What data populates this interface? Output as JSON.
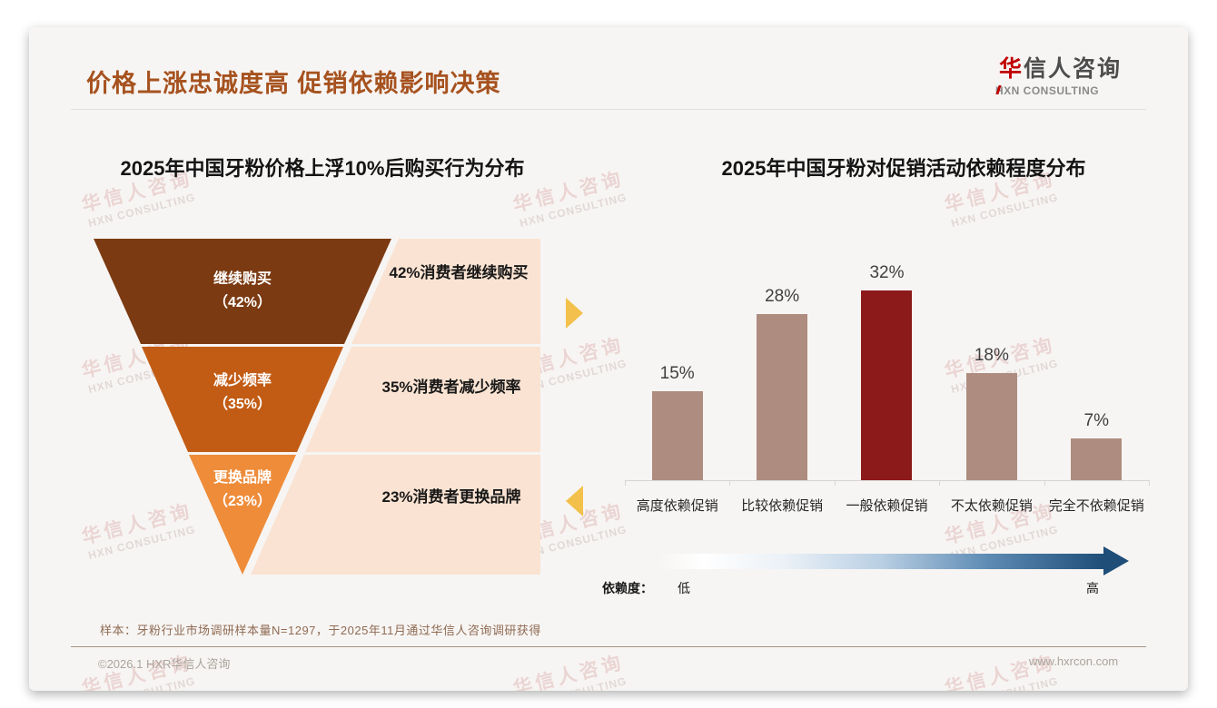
{
  "header": {
    "title": "价格上涨忠诚度高 促销依赖影响决策",
    "logo": {
      "name_first": "华",
      "name_rest": "信人咨询",
      "subtitle": "HXN CONSULTING"
    }
  },
  "watermark": {
    "line1": "华信人咨询",
    "line2": "HXN CONSULTING"
  },
  "colors": {
    "title": "#A6521F",
    "funnel_tier1": "#7B3A12",
    "funnel_tier2": "#C25C15",
    "funnel_tier3": "#EE8C3A",
    "panel_bg": "#FAE3D2",
    "bar": "#AE8C80",
    "bar_highlight": "#8C1A1A",
    "accent_triangle": "#F3C14B",
    "arrow_dark": "#1F4E79"
  },
  "chart_data": [
    {
      "type": "funnel",
      "title": "2025年中国牙粉价格上浮10%后购买行为分布",
      "categories": [
        "继续购买",
        "减少频率",
        "更换品牌"
      ],
      "values": [
        42,
        35,
        23
      ],
      "unit": "%",
      "tiers": [
        {
          "line1": "继续购买",
          "line2": "（42%）",
          "note": "42%消费者继续购买"
        },
        {
          "line1": "减少频率",
          "line2": "（35%）",
          "note": "35%消费者减少频率"
        },
        {
          "line1": "更换品牌",
          "line2": "（23%）",
          "note": "23%消费者更换品牌"
        }
      ]
    },
    {
      "type": "bar",
      "title": "2025年中国牙粉对促销活动依赖程度分布",
      "categories": [
        "高度依赖促销",
        "比较依赖促销",
        "一般依赖促销",
        "不太依赖促销",
        "完全不依赖促销"
      ],
      "values": [
        15,
        28,
        32,
        18,
        7
      ],
      "data_labels": [
        "15%",
        "28%",
        "32%",
        "18%",
        "7%"
      ],
      "unit": "%",
      "ylim": [
        0,
        35
      ],
      "grid": false,
      "legend": "none",
      "highlight_index": 2,
      "axis_note": {
        "label": "依赖度：",
        "low": "低",
        "high": "高"
      }
    }
  ],
  "footnote": "样本：牙粉行业市场调研样本量N=1297，于2025年11月通过华信人咨询调研获得",
  "footer": {
    "copyright": "©2026.1 HXR华信人咨询",
    "website": "www.hxrcon.com"
  }
}
